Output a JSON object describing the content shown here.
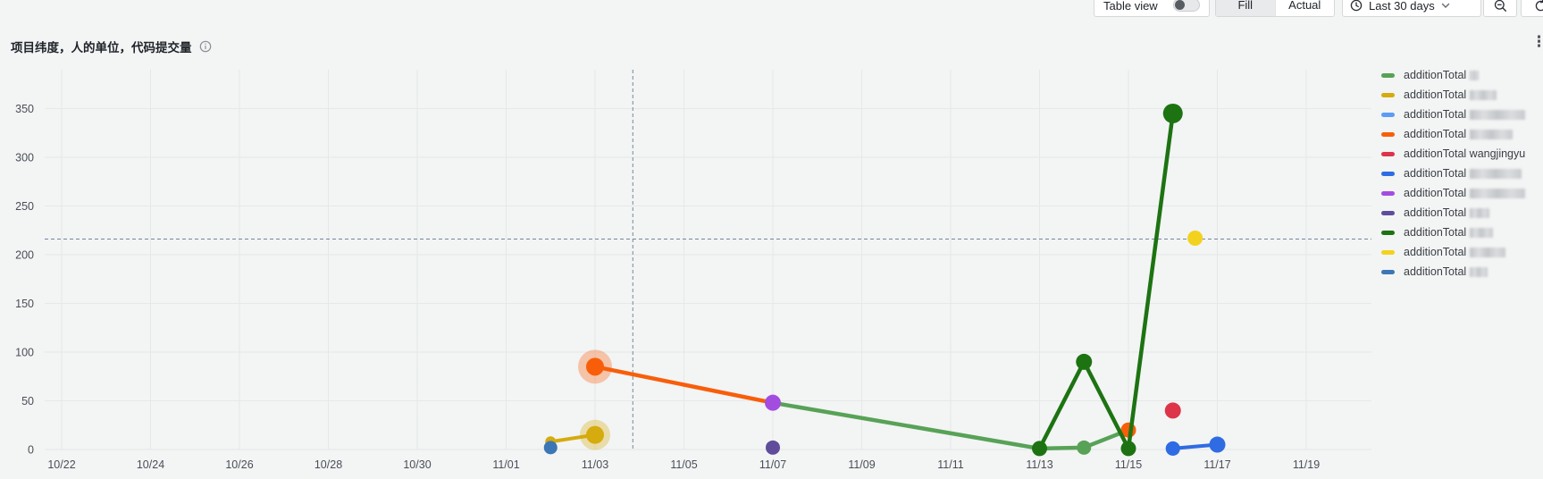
{
  "toolbar": {
    "table_view_label": "Table view",
    "table_view_on": false,
    "fill_label": "Fill",
    "actual_label": "Actual",
    "selected_mode": "Fill",
    "range_label": "Last 30 days",
    "icons": [
      "clock-icon",
      "chevron-down-icon",
      "zoom-out-icon",
      "refresh-icon",
      "kebab-menu-icon",
      "toggle-switch",
      "info-icon"
    ]
  },
  "title": {
    "text": "项目纬度，人的单位，代码提交量"
  },
  "chart_data": {
    "type": "line",
    "title": "项目纬度，人的单位，代码提交量",
    "xlabel": "",
    "ylabel": "",
    "grid": true,
    "legend_position": "right",
    "ylim": [
      0,
      350
    ],
    "y_ticks": [
      0,
      50,
      100,
      150,
      200,
      250,
      300,
      350
    ],
    "x_tick_labels": [
      "10/22",
      "10/24",
      "10/26",
      "10/28",
      "10/30",
      "11/01",
      "11/03",
      "11/05",
      "11/07",
      "11/09",
      "11/11",
      "11/13",
      "11/15",
      "11/17",
      "11/19"
    ],
    "x_tick_days": [
      0,
      2,
      4,
      6,
      8,
      10,
      12,
      14,
      16,
      18,
      20,
      22,
      24,
      26,
      28
    ],
    "day0_date": "10/22",
    "marklines": {
      "horizontal_value": 216,
      "vertical_day": 12.85,
      "style": "dashed",
      "color": "#74879b"
    },
    "series": [
      {
        "label": "additionTotal",
        "name": "",
        "redacted": true,
        "redacted_width": 10,
        "color": "#57a257",
        "z": 3,
        "line": true,
        "width": 4.5,
        "points": [
          [
            16,
            48,
            8
          ],
          [
            22,
            1,
            7
          ],
          [
            23,
            2,
            8
          ],
          [
            24,
            20,
            8
          ]
        ]
      },
      {
        "label": "additionTotal",
        "name": "",
        "redacted": true,
        "redacted_width": 30,
        "color": "#d5ab0d",
        "z": 1,
        "line": true,
        "width": 4,
        "points": [
          [
            11,
            8,
            6
          ],
          [
            12,
            15,
            10
          ]
        ],
        "halo_point": 1,
        "halo_r": 17
      },
      {
        "label": "additionTotal",
        "name": "",
        "redacted": true,
        "redacted_width": 62,
        "color": "#5c9cf5",
        "z": 9,
        "line": false,
        "points": [
          [
            25,
            1,
            8
          ]
        ]
      },
      {
        "label": "additionTotal",
        "name": "",
        "redacted": true,
        "redacted_width": 48,
        "color": "#f85e0a",
        "z": 4,
        "line": true,
        "line_count": 2,
        "width": 4.5,
        "points": [
          [
            12,
            85,
            10
          ],
          [
            16,
            48,
            8
          ],
          [
            24,
            20,
            8.5
          ]
        ],
        "halo_point": 0,
        "halo_r": 19
      },
      {
        "label": "additionTotal",
        "name": "wangjingyu",
        "redacted": false,
        "redacted_width": 0,
        "color": "#dd3449",
        "z": 8,
        "line": false,
        "points": [
          [
            25,
            40,
            9
          ]
        ]
      },
      {
        "label": "additionTotal",
        "name": "",
        "redacted": true,
        "redacted_width": 58,
        "color": "#2f6ce3",
        "z": 10,
        "line": true,
        "width": 4,
        "points": [
          [
            25,
            1,
            8
          ],
          [
            26,
            5,
            9
          ]
        ]
      },
      {
        "label": "additionTotal",
        "name": "",
        "redacted": true,
        "redacted_width": 62,
        "color": "#a34de0",
        "z": 5,
        "line": false,
        "points": [
          [
            16,
            48,
            9
          ]
        ]
      },
      {
        "label": "additionTotal",
        "name": "",
        "redacted": true,
        "redacted_width": 22,
        "color": "#5f4d9c",
        "z": 6,
        "line": false,
        "points": [
          [
            16,
            2,
            8
          ]
        ]
      },
      {
        "label": "additionTotal",
        "name": "",
        "redacted": true,
        "redacted_width": 26,
        "color": "#1d7312",
        "z": 7,
        "line": true,
        "width": 4.5,
        "points": [
          [
            22,
            1,
            8.5
          ],
          [
            23,
            90,
            9
          ],
          [
            24,
            1,
            8.5
          ],
          [
            25,
            345,
            11
          ]
        ]
      },
      {
        "label": "additionTotal",
        "name": "",
        "redacted": true,
        "redacted_width": 40,
        "color": "#f2d21f",
        "z": 11,
        "line": false,
        "points": [
          [
            25.5,
            217,
            8.5
          ]
        ]
      },
      {
        "label": "additionTotal",
        "name": "",
        "redacted": true,
        "redacted_width": 20,
        "color": "#3c76b5",
        "z": 2,
        "line": false,
        "points": [
          [
            11,
            2,
            7.5
          ]
        ]
      }
    ]
  }
}
